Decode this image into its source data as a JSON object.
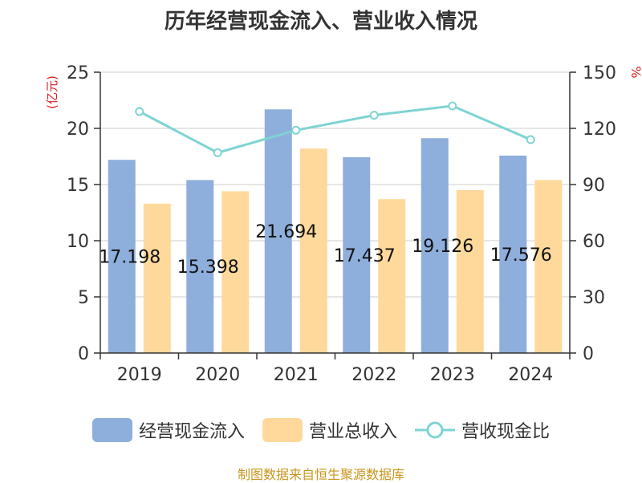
{
  "chart_data": {
    "type": "bar",
    "title": "历年经营现金流入、营业收入情况",
    "categories": [
      "2019",
      "2020",
      "2021",
      "2022",
      "2023",
      "2024"
    ],
    "y_left": {
      "unit_label": "(亿元)",
      "lim": [
        0,
        25
      ],
      "ticks": [
        "0",
        "5",
        "10",
        "15",
        "20",
        "25"
      ]
    },
    "y_right": {
      "unit_label": "%",
      "lim": [
        0,
        150
      ],
      "ticks": [
        "0",
        "30",
        "60",
        "90",
        "120",
        "150"
      ]
    },
    "series": [
      {
        "name": "经营现金流入",
        "kind": "bar",
        "axis": "left",
        "color": "#8eaedb",
        "values": [
          17.198,
          15.398,
          21.694,
          17.437,
          19.126,
          17.576
        ],
        "labels": [
          "17.198",
          "15.398",
          "21.694",
          "17.437",
          "19.126",
          "17.576"
        ]
      },
      {
        "name": "营业总收入",
        "kind": "bar",
        "axis": "left",
        "color": "#ffd99b",
        "values": [
          13.3,
          14.4,
          18.2,
          13.7,
          14.5,
          15.4
        ]
      },
      {
        "name": "营收现金比",
        "kind": "line",
        "axis": "right",
        "color": "#7fd3d3",
        "values": [
          129,
          107,
          119,
          127,
          132,
          114
        ]
      }
    ],
    "grid": true,
    "legend_position": "bottom",
    "source_note": "制图数据来自恒生聚源数据库"
  }
}
